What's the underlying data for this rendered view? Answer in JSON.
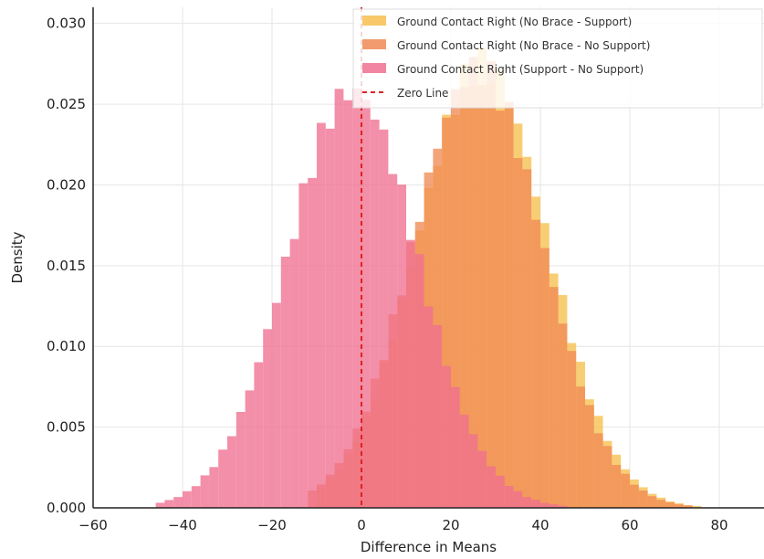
{
  "chart_data": {
    "type": "histogram",
    "xlabel": "Difference in Means",
    "ylabel": "Density",
    "xlim": [
      -60,
      90
    ],
    "ylim": [
      0,
      0.031
    ],
    "x_ticks": [
      -60,
      -40,
      -20,
      0,
      20,
      40,
      60,
      80
    ],
    "y_ticks": [
      0.0,
      0.005,
      0.01,
      0.015,
      0.02,
      0.025,
      0.03
    ],
    "y_tick_labels": [
      "0.000",
      "0.005",
      "0.010",
      "0.015",
      "0.020",
      "0.025",
      "0.030"
    ],
    "grid": true,
    "legend_position": "top-right",
    "bin_width": 2,
    "series": [
      {
        "name": "Ground Contact Right (No Brace - Support)",
        "color": "#f6c04d",
        "mean": 27,
        "sd": 14.5,
        "peak_density": 0.0275,
        "range": [
          -10,
          76
        ]
      },
      {
        "name": "Ground Contact Right (No Brace - No Support)",
        "color": "#f08a55",
        "mean": 26,
        "sd": 14.5,
        "peak_density": 0.0272,
        "range": [
          -12,
          74
        ]
      },
      {
        "name": "Ground Contact Right (Support - No Support)",
        "color": "#f07090",
        "mean": -2,
        "sd": 14.5,
        "peak_density": 0.0258,
        "range": [
          -46,
          46
        ]
      }
    ],
    "reference_line": {
      "name": "Zero Line",
      "x": 0,
      "color": "#dd2222",
      "style": "dashed"
    }
  }
}
